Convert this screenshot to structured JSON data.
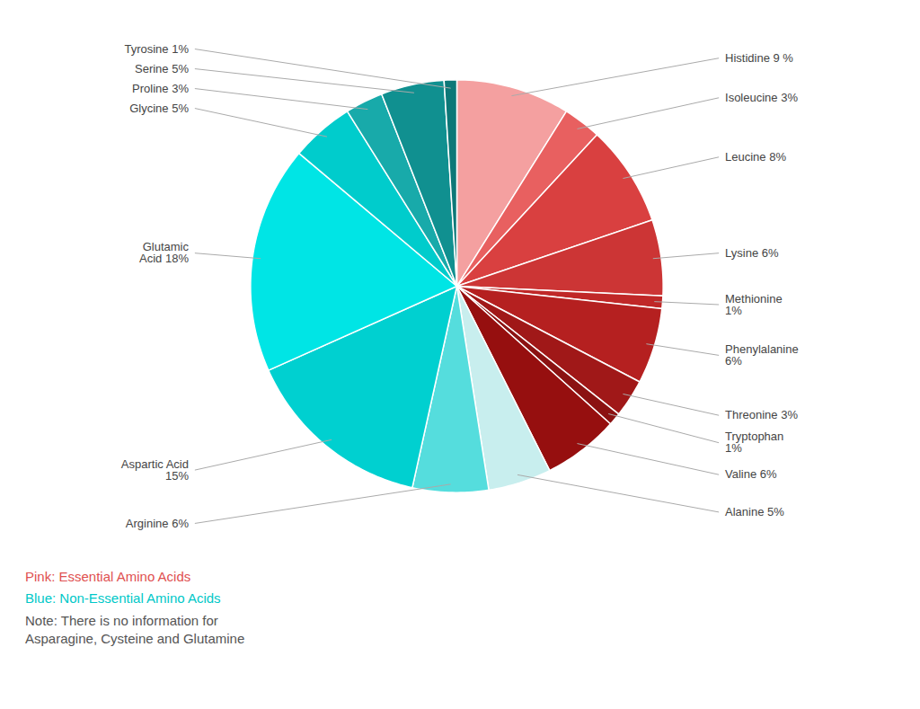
{
  "chart_data": {
    "type": "pie",
    "categories": [
      "Histidine 9 %",
      "Isoleucine 3%",
      "Leucine 8%",
      "Lysine 6%",
      "Methionine\n1%",
      "Phenylalanine\n6%",
      "Threonine 3%",
      "Tryptophan\n1%",
      "Valine 6%",
      "Alanine 5%",
      "Arginine 6%",
      "Aspartic Acid\n15%",
      "Glutamic\nAcid 18%",
      "Glycine 5%",
      "Proline 3%",
      "Serine 5%",
      "Tyrosine 1%"
    ],
    "values": [
      9,
      3,
      8,
      6,
      1,
      6,
      3,
      1,
      6,
      5,
      6,
      15,
      18,
      5,
      3,
      5,
      1
    ],
    "colors": [
      "#F4A0A0",
      "#E86060",
      "#D94040",
      "#CC3535",
      "#C02828",
      "#B52020",
      "#A01818",
      "#8B1212",
      "#960F0F",
      "#C8EEEE",
      "#55DDDD",
      "#00D0D0",
      "#00E5E5",
      "#00CCCC",
      "#18AAAA",
      "#109090",
      "#0D7878"
    ],
    "annotations": [
      {
        "text": "Pink: Essential Amino Acids",
        "color": "#E05050"
      },
      {
        "text": "Blue: Non-Essential Amino Acids",
        "color": "#00C8C8"
      },
      {
        "text": "Note: There is no information for\nAsparagine, Cysteine and Glutamine",
        "color": "#555555"
      }
    ]
  }
}
